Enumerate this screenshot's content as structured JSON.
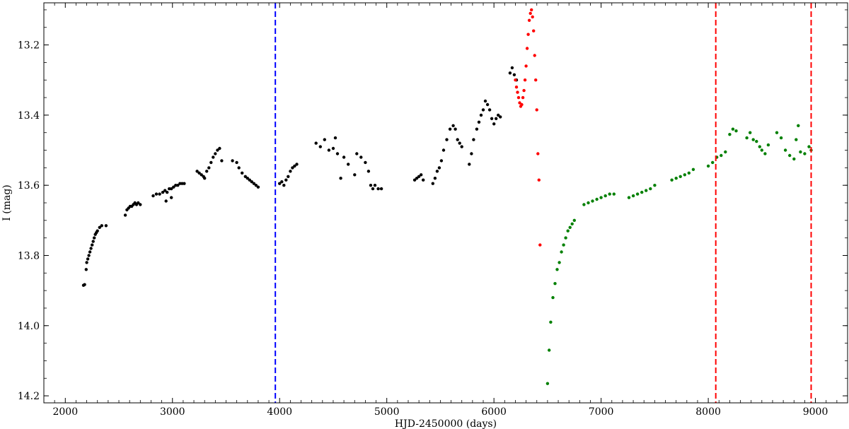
{
  "chart_data": {
    "type": "scatter",
    "title": "",
    "xlabel": "HJD-2450000 (days)",
    "ylabel": "I (mag)",
    "xlim": [
      1800,
      9300
    ],
    "ylim": [
      14.22,
      13.08
    ],
    "y_inverted": true,
    "grid": false,
    "x_ticks": [
      2000,
      3000,
      4000,
      5000,
      6000,
      7000,
      8000,
      9000
    ],
    "x_tick_labels": [
      "2000",
      "3000",
      "4000",
      "5000",
      "6000",
      "7000",
      "8000",
      "9000"
    ],
    "y_ticks": [
      13.2,
      13.4,
      13.6,
      13.8,
      14.0,
      14.2
    ],
    "y_tick_labels": [
      "13.2",
      "13.4",
      "13.6",
      "13.8",
      "14.0",
      "14.2"
    ],
    "vertical_lines": [
      {
        "x": 3960,
        "color": "#0000ff",
        "style": "dashed"
      },
      {
        "x": 8070,
        "color": "#ff0000",
        "style": "dashed"
      },
      {
        "x": 8960,
        "color": "#ff0000",
        "style": "dashed"
      }
    ],
    "series": [
      {
        "color": "#000000",
        "points": [
          [
            2170,
            13.885
          ],
          [
            2180,
            13.883
          ],
          [
            2195,
            13.84
          ],
          [
            2200,
            13.82
          ],
          [
            2210,
            13.81
          ],
          [
            2220,
            13.8
          ],
          [
            2230,
            13.79
          ],
          [
            2240,
            13.78
          ],
          [
            2250,
            13.77
          ],
          [
            2260,
            13.76
          ],
          [
            2270,
            13.75
          ],
          [
            2280,
            13.74
          ],
          [
            2290,
            13.735
          ],
          [
            2300,
            13.73
          ],
          [
            2320,
            13.72
          ],
          [
            2340,
            13.715
          ],
          [
            2380,
            13.715
          ],
          [
            2560,
            13.685
          ],
          [
            2575,
            13.67
          ],
          [
            2590,
            13.665
          ],
          [
            2605,
            13.66
          ],
          [
            2620,
            13.66
          ],
          [
            2635,
            13.655
          ],
          [
            2650,
            13.65
          ],
          [
            2665,
            13.655
          ],
          [
            2680,
            13.65
          ],
          [
            2700,
            13.655
          ],
          [
            2820,
            13.63
          ],
          [
            2850,
            13.625
          ],
          [
            2880,
            13.625
          ],
          [
            2910,
            13.62
          ],
          [
            2930,
            13.615
          ],
          [
            2950,
            13.62
          ],
          [
            2970,
            13.61
          ],
          [
            2990,
            13.61
          ],
          [
            3010,
            13.605
          ],
          [
            3030,
            13.6
          ],
          [
            3050,
            13.6
          ],
          [
            3070,
            13.595
          ],
          [
            3090,
            13.595
          ],
          [
            3110,
            13.595
          ],
          [
            2940,
            13.645
          ],
          [
            2990,
            13.635
          ],
          [
            3230,
            13.56
          ],
          [
            3250,
            13.565
          ],
          [
            3270,
            13.57
          ],
          [
            3290,
            13.575
          ],
          [
            3300,
            13.58
          ],
          [
            3320,
            13.56
          ],
          [
            3340,
            13.55
          ],
          [
            3360,
            13.535
          ],
          [
            3380,
            13.52
          ],
          [
            3400,
            13.51
          ],
          [
            3420,
            13.5
          ],
          [
            3440,
            13.495
          ],
          [
            3460,
            13.53
          ],
          [
            3560,
            13.53
          ],
          [
            3600,
            13.535
          ],
          [
            3620,
            13.55
          ],
          [
            3650,
            13.565
          ],
          [
            3680,
            13.575
          ],
          [
            3700,
            13.58
          ],
          [
            3720,
            13.585
          ],
          [
            3740,
            13.59
          ],
          [
            3760,
            13.595
          ],
          [
            3780,
            13.6
          ],
          [
            3800,
            13.605
          ],
          [
            4000,
            13.595
          ],
          [
            4020,
            13.59
          ],
          [
            4040,
            13.6
          ],
          [
            4060,
            13.585
          ],
          [
            4080,
            13.575
          ],
          [
            4100,
            13.56
          ],
          [
            4120,
            13.55
          ],
          [
            4140,
            13.545
          ],
          [
            4160,
            13.54
          ],
          [
            4340,
            13.48
          ],
          [
            4380,
            13.49
          ],
          [
            4420,
            13.47
          ],
          [
            4460,
            13.5
          ],
          [
            4500,
            13.495
          ],
          [
            4520,
            13.465
          ],
          [
            4540,
            13.51
          ],
          [
            4570,
            13.58
          ],
          [
            4600,
            13.52
          ],
          [
            4640,
            13.54
          ],
          [
            4700,
            13.57
          ],
          [
            4720,
            13.51
          ],
          [
            4760,
            13.52
          ],
          [
            4800,
            13.535
          ],
          [
            4830,
            13.56
          ],
          [
            4850,
            13.6
          ],
          [
            4870,
            13.61
          ],
          [
            4890,
            13.6
          ],
          [
            4920,
            13.61
          ],
          [
            4950,
            13.61
          ],
          [
            5260,
            13.585
          ],
          [
            5280,
            13.58
          ],
          [
            5300,
            13.575
          ],
          [
            5320,
            13.57
          ],
          [
            5340,
            13.585
          ],
          [
            5430,
            13.595
          ],
          [
            5450,
            13.58
          ],
          [
            5470,
            13.56
          ],
          [
            5490,
            13.55
          ],
          [
            5510,
            13.53
          ],
          [
            5530,
            13.5
          ],
          [
            5560,
            13.47
          ],
          [
            5590,
            13.44
          ],
          [
            5620,
            13.43
          ],
          [
            5640,
            13.44
          ],
          [
            5660,
            13.47
          ],
          [
            5680,
            13.48
          ],
          [
            5700,
            13.49
          ],
          [
            5770,
            13.54
          ],
          [
            5790,
            13.51
          ],
          [
            5810,
            13.47
          ],
          [
            5840,
            13.44
          ],
          [
            5860,
            13.42
          ],
          [
            5880,
            13.4
          ],
          [
            5900,
            13.385
          ],
          [
            5920,
            13.36
          ],
          [
            5940,
            13.37
          ],
          [
            5960,
            13.385
          ],
          [
            5980,
            13.41
          ],
          [
            6000,
            13.425
          ],
          [
            6020,
            13.41
          ],
          [
            6040,
            13.4
          ],
          [
            6060,
            13.405
          ],
          [
            6150,
            13.28
          ],
          [
            6170,
            13.265
          ],
          [
            6190,
            13.285
          ],
          [
            6210,
            13.3
          ]
        ]
      },
      {
        "color": "#ff0000",
        "points": [
          [
            6200,
            13.3
          ],
          [
            6210,
            13.32
          ],
          [
            6220,
            13.335
          ],
          [
            6230,
            13.35
          ],
          [
            6240,
            13.365
          ],
          [
            6250,
            13.375
          ],
          [
            6260,
            13.37
          ],
          [
            6270,
            13.35
          ],
          [
            6280,
            13.33
          ],
          [
            6290,
            13.3
          ],
          [
            6300,
            13.26
          ],
          [
            6310,
            13.21
          ],
          [
            6320,
            13.17
          ],
          [
            6330,
            13.13
          ],
          [
            6340,
            13.11
          ],
          [
            6350,
            13.1
          ],
          [
            6360,
            13.12
          ],
          [
            6370,
            13.16
          ],
          [
            6380,
            13.23
          ],
          [
            6390,
            13.3
          ],
          [
            6400,
            13.385
          ],
          [
            6410,
            13.51
          ],
          [
            6420,
            13.585
          ],
          [
            6430,
            13.77
          ]
        ]
      },
      {
        "color": "#008000",
        "points": [
          [
            6500,
            14.165
          ],
          [
            6515,
            14.07
          ],
          [
            6530,
            13.99
          ],
          [
            6550,
            13.92
          ],
          [
            6570,
            13.88
          ],
          [
            6590,
            13.84
          ],
          [
            6610,
            13.82
          ],
          [
            6630,
            13.79
          ],
          [
            6650,
            13.77
          ],
          [
            6670,
            13.75
          ],
          [
            6690,
            13.73
          ],
          [
            6710,
            13.72
          ],
          [
            6730,
            13.71
          ],
          [
            6750,
            13.7
          ],
          [
            6840,
            13.655
          ],
          [
            6880,
            13.65
          ],
          [
            6920,
            13.645
          ],
          [
            6960,
            13.64
          ],
          [
            7000,
            13.635
          ],
          [
            7040,
            13.63
          ],
          [
            7080,
            13.625
          ],
          [
            7120,
            13.625
          ],
          [
            7260,
            13.635
          ],
          [
            7300,
            13.63
          ],
          [
            7340,
            13.625
          ],
          [
            7380,
            13.62
          ],
          [
            7420,
            13.615
          ],
          [
            7460,
            13.61
          ],
          [
            7500,
            13.6
          ],
          [
            7660,
            13.585
          ],
          [
            7700,
            13.58
          ],
          [
            7740,
            13.575
          ],
          [
            7780,
            13.57
          ],
          [
            7820,
            13.565
          ],
          [
            7860,
            13.555
          ],
          [
            8000,
            13.545
          ],
          [
            8040,
            13.535
          ],
          [
            8080,
            13.52
          ],
          [
            8120,
            13.515
          ],
          [
            8160,
            13.505
          ],
          [
            8200,
            13.455
          ],
          [
            8230,
            13.44
          ],
          [
            8260,
            13.445
          ],
          [
            8360,
            13.465
          ],
          [
            8390,
            13.45
          ],
          [
            8420,
            13.47
          ],
          [
            8450,
            13.475
          ],
          [
            8480,
            13.49
          ],
          [
            8500,
            13.5
          ],
          [
            8530,
            13.51
          ],
          [
            8560,
            13.485
          ],
          [
            8640,
            13.45
          ],
          [
            8680,
            13.465
          ],
          [
            8720,
            13.5
          ],
          [
            8760,
            13.515
          ],
          [
            8800,
            13.525
          ],
          [
            8820,
            13.47
          ],
          [
            8840,
            13.43
          ],
          [
            8860,
            13.505
          ],
          [
            8900,
            13.51
          ],
          [
            8940,
            13.49
          ],
          [
            8960,
            13.5
          ]
        ]
      }
    ]
  }
}
